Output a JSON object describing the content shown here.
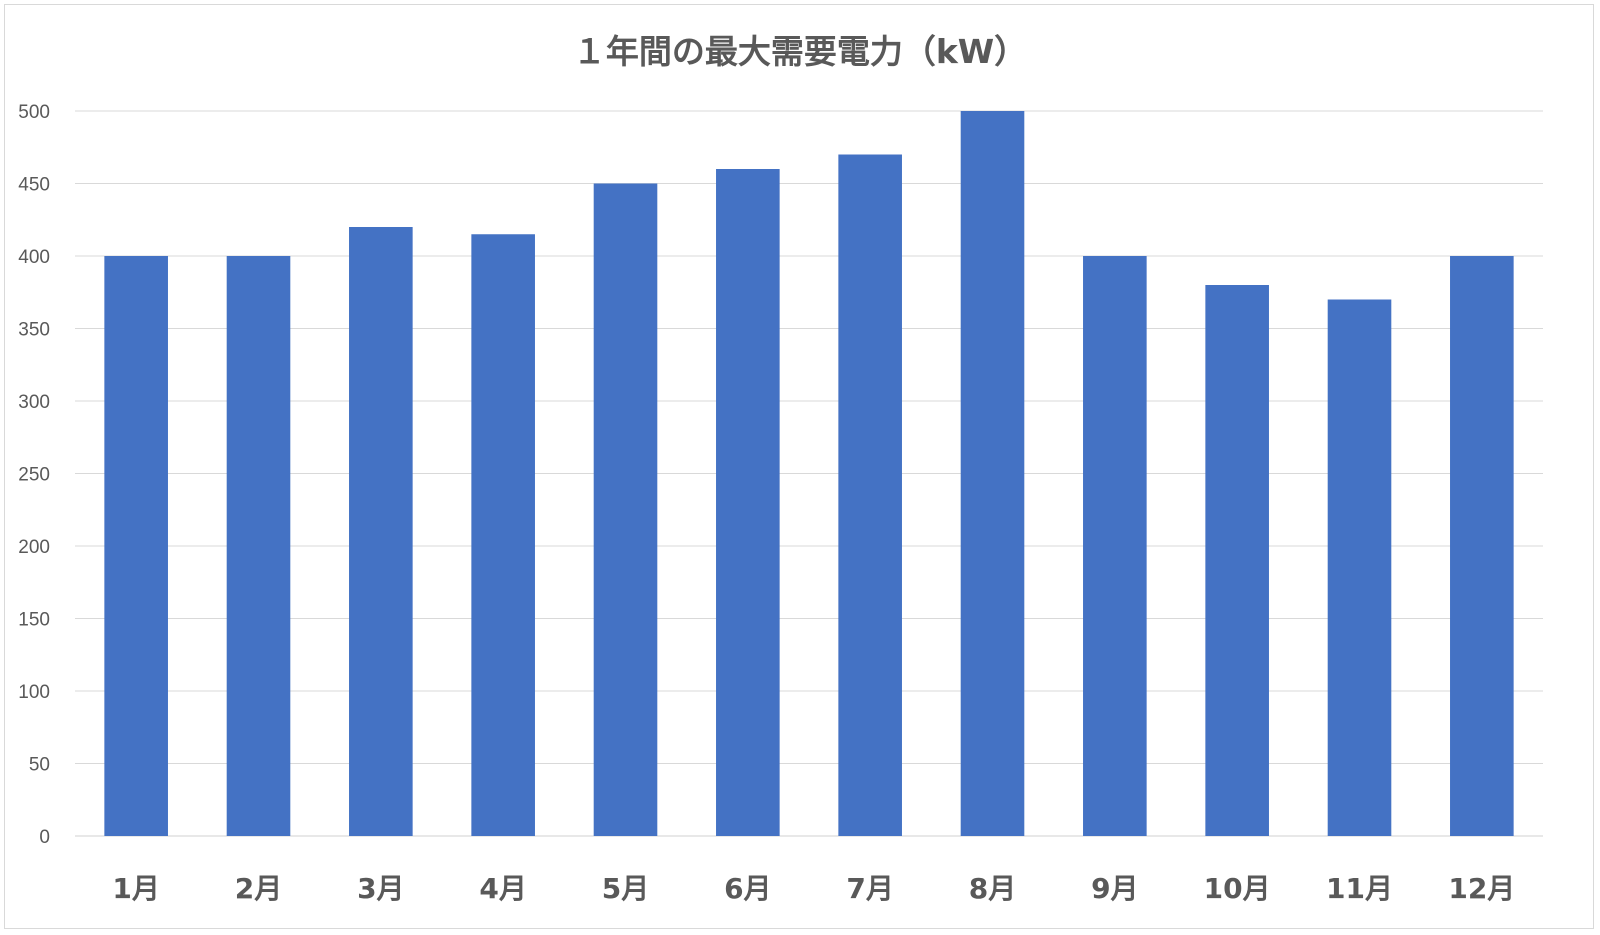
{
  "chart_data": {
    "type": "bar",
    "title": "１年間の最大需要電力（kW）",
    "categories": [
      "1月",
      "2月",
      "3月",
      "4月",
      "5月",
      "6月",
      "7月",
      "8月",
      "9月",
      "10月",
      "11月",
      "12月"
    ],
    "values": [
      400,
      400,
      420,
      415,
      450,
      460,
      470,
      500,
      400,
      380,
      370,
      400
    ],
    "xlabel": "",
    "ylabel": "",
    "ylim": [
      0,
      500
    ],
    "yticks": [
      0,
      50,
      100,
      150,
      200,
      250,
      300,
      350,
      400,
      450,
      500
    ],
    "grid": true,
    "legend": "none",
    "bar_color": "#4472C4"
  }
}
